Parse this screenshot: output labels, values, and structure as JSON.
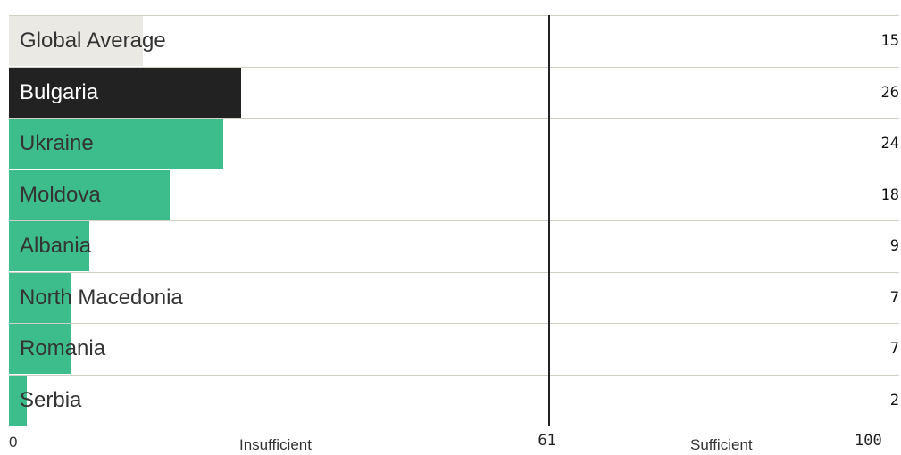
{
  "chart_data": {
    "type": "bar",
    "orientation": "horizontal",
    "categories": [
      "Global Average",
      "Bulgaria",
      "Ukraine",
      "Moldova",
      "Albania",
      "North Macedonia",
      "Romania",
      "Serbia"
    ],
    "values": [
      15,
      26,
      24,
      18,
      9,
      7,
      7,
      2
    ],
    "xlim": [
      0,
      100
    ],
    "threshold": 61,
    "axis_ticks": [
      "0",
      "61",
      "100"
    ],
    "zone_labels": [
      "Insufficient",
      "Sufficient"
    ],
    "bar_colors": [
      "#ebe9e4",
      "#222222",
      "#3dbd8b",
      "#3dbd8b",
      "#3dbd8b",
      "#3dbd8b",
      "#3dbd8b",
      "#3dbd8b"
    ],
    "grid": false
  }
}
